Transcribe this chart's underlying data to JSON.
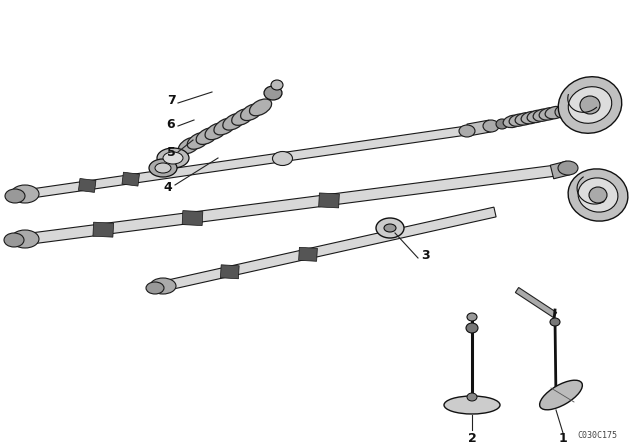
{
  "background_color": "#ffffff",
  "fig_width": 6.4,
  "fig_height": 4.48,
  "dpi": 100,
  "watermark": "C030C175",
  "rod_color": "#d8d8d8",
  "rod_edge": "#1a1a1a",
  "spring_color": "#b0b0b0",
  "spring_edge": "#222222",
  "dark_band": "#555555",
  "part_color": "#cccccc",
  "part_edge": "#111111"
}
